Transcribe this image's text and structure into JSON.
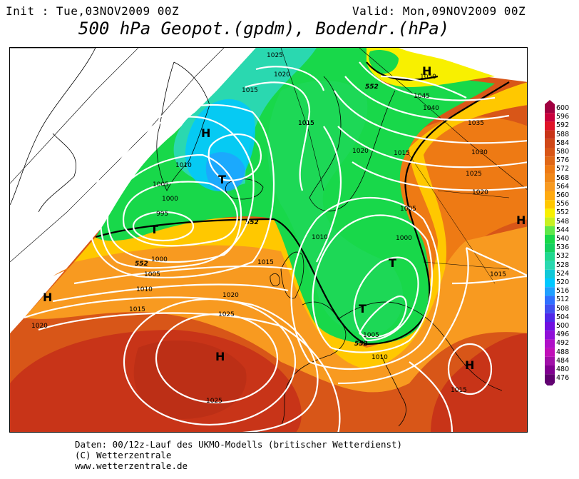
{
  "header": {
    "init": "Init : Tue,03NOV2009 00Z",
    "valid": "Valid: Mon,09NOV2009 00Z",
    "title": "500 hPa Geopot.(gpdm), Bodendr.(hPa)"
  },
  "footer": {
    "line1": "Daten: 00/12z-Lauf des UKMO-Modells (britischer Wetterdienst)",
    "line2": "(C) Wetterzentrale",
    "line3": "www.wetterzentrale.de"
  },
  "colors": {
    "cyan": "#00c8ff",
    "teal": "#2ad8b0",
    "green": "#18d84a",
    "green_light": "#5fe84a",
    "yellow": "#f8f000",
    "yellow_orange": "#ffc800",
    "orange": "#f89a20",
    "orange_dark": "#ee7a14",
    "red_orange": "#d85618",
    "red": "#c83418"
  },
  "color_scale": {
    "labels": [
      "600",
      "596",
      "592",
      "588",
      "584",
      "580",
      "576",
      "572",
      "568",
      "564",
      "560",
      "556",
      "552",
      "548",
      "544",
      "540",
      "536",
      "532",
      "528",
      "524",
      "520",
      "516",
      "512",
      "508",
      "504",
      "500",
      "496",
      "492",
      "488",
      "484",
      "480",
      "476"
    ],
    "colors": [
      "#a00040",
      "#c8003c",
      "#e01428",
      "#c83418",
      "#d04818",
      "#d85618",
      "#e06818",
      "#ee7a14",
      "#f08818",
      "#f89a20",
      "#ffaa10",
      "#ffc800",
      "#f8f000",
      "#c8f020",
      "#5fe84a",
      "#18d84a",
      "#14d060",
      "#20d890",
      "#2ad8b0",
      "#10c8d8",
      "#00c8ff",
      "#20a0ff",
      "#3070ff",
      "#4050f0",
      "#5028e8",
      "#7010e0",
      "#9010d8",
      "#b010c8",
      "#c010b8",
      "#a010a8",
      "#800090",
      "#600070"
    ]
  },
  "map": {
    "highs": [
      {
        "label": "H"
      },
      {
        "label": "H"
      },
      {
        "label": "H"
      },
      {
        "label": "H"
      },
      {
        "label": "H"
      },
      {
        "label": "H"
      }
    ],
    "lows": [
      {
        "label": "T"
      },
      {
        "label": "T"
      },
      {
        "label": "T"
      },
      {
        "label": "T"
      }
    ],
    "pressure_labels": [
      "1025",
      "1020",
      "1015",
      "1010",
      "1005",
      "1000",
      "995",
      "1015",
      "1020",
      "1050",
      "1045",
      "1040",
      "1035",
      "1030",
      "1025",
      "1020",
      "1015",
      "1015",
      "1010",
      "1005",
      "1000",
      "1005",
      "1010",
      "1015",
      "1020",
      "1025",
      "1020",
      "1000",
      "1005",
      "1010",
      "1015",
      "1025",
      "1015",
      "1015",
      "1020"
    ],
    "geopot_labels": [
      "552",
      "552",
      "552",
      "552"
    ]
  }
}
